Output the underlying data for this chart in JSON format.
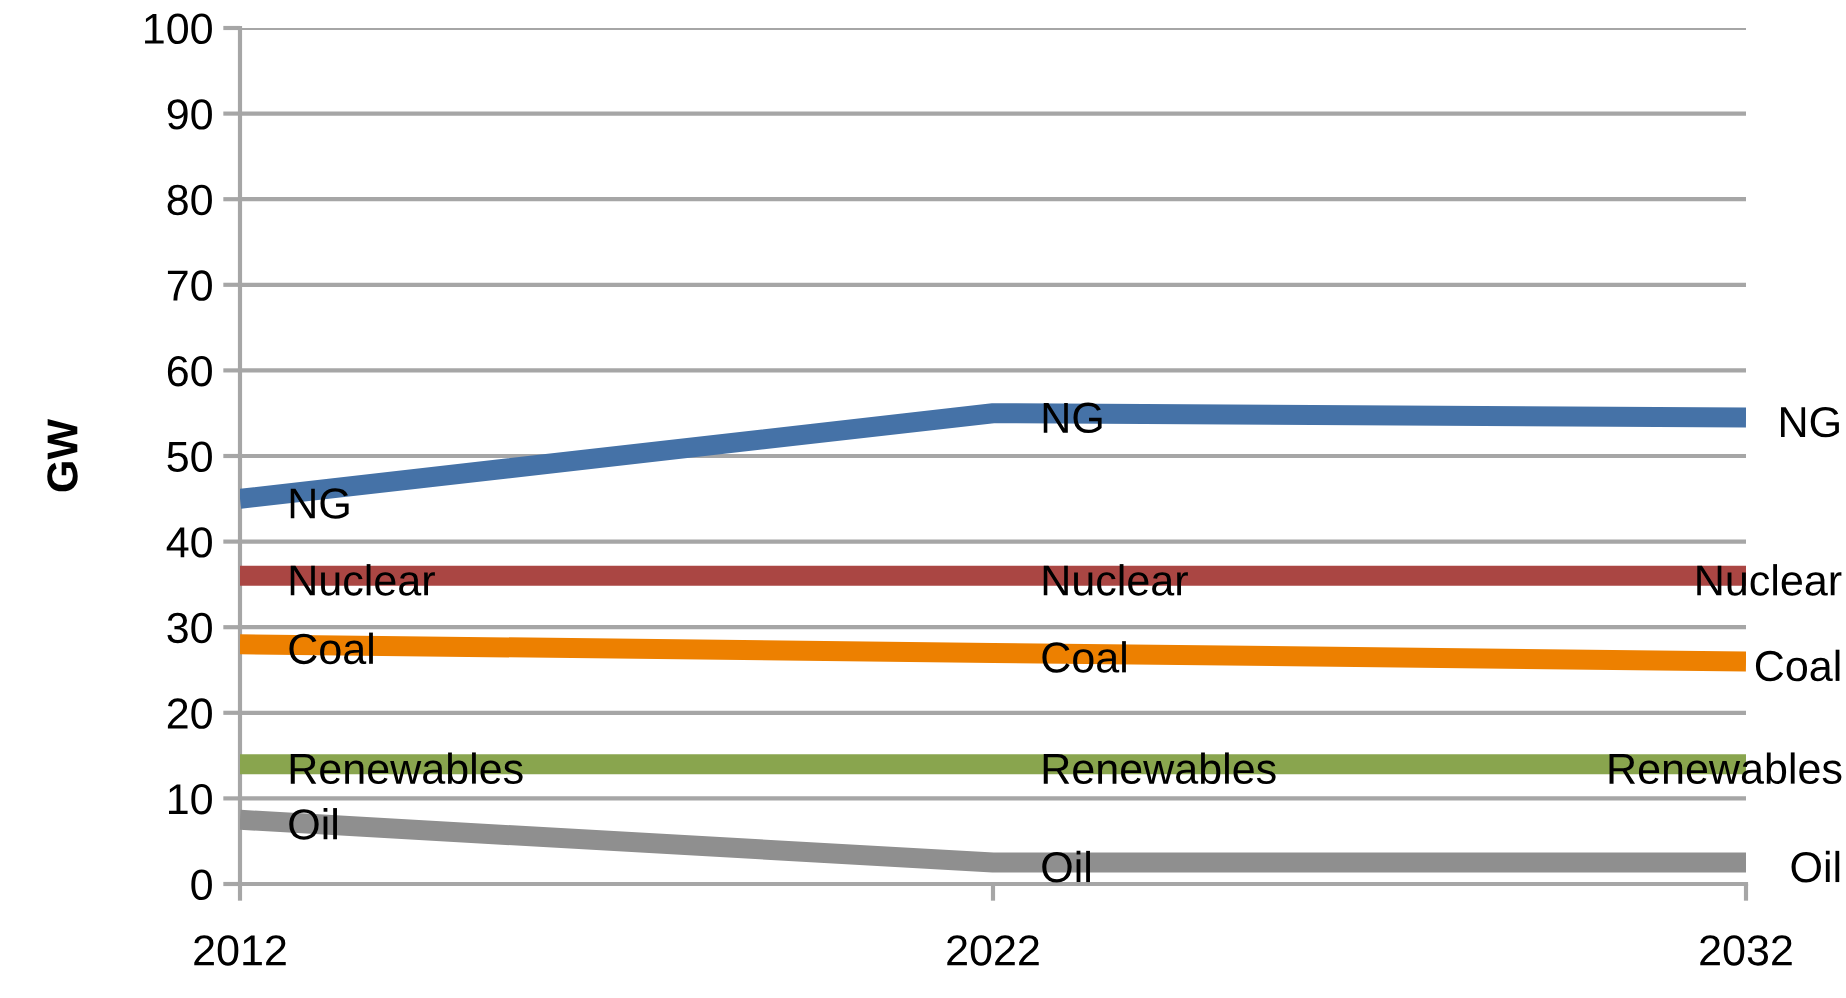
{
  "chart_data": {
    "type": "line",
    "ylabel": "GW",
    "categories": [
      "2012",
      "2022",
      "2032"
    ],
    "ylim": [
      0,
      100
    ],
    "yticks": [
      0,
      10,
      20,
      30,
      40,
      50,
      60,
      70,
      80,
      90,
      100
    ],
    "grid": "y",
    "marker": "none",
    "line_style": "solid",
    "series": [
      {
        "color": "#4572a7",
        "values": [
          45,
          55,
          54.5
        ],
        "value_labels": [
          "NG",
          "NG",
          "NG"
        ]
      },
      {
        "color": "#aa4643",
        "values": [
          36,
          36,
          36
        ],
        "value_labels": [
          "Nuclear",
          "Nuclear",
          "Nuclear"
        ]
      },
      {
        "color": "#ed8000",
        "values": [
          28,
          27,
          26
        ],
        "value_labels": [
          "Coal",
          "Coal",
          "Coal"
        ]
      },
      {
        "color": "#89a54e",
        "values": [
          14,
          14,
          14
        ],
        "value_labels": [
          "Renewables",
          "Renewables",
          "Renewables"
        ]
      },
      {
        "color": "#8f8f8f",
        "values": [
          7.5,
          2.5,
          2.5
        ],
        "value_labels": [
          "Oil",
          "Oil",
          "Oil"
        ]
      }
    ]
  }
}
